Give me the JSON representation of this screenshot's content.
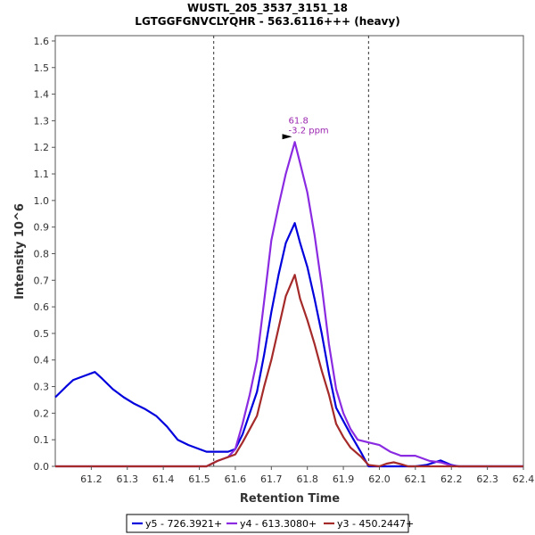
{
  "chart_data": {
    "type": "line",
    "title": "WUSTL_205_3537_3151_18",
    "subtitle": "LGTGGFGNVCLYQHR - 563.6116+++ (heavy)",
    "xlabel": "Retention Time",
    "ylabel": "Intensity 10^6",
    "xlim": [
      61.1,
      62.4
    ],
    "ylim": [
      0,
      1.62
    ],
    "x_ticks": [
      "61.2",
      "61.3",
      "61.4",
      "61.5",
      "61.6",
      "61.7",
      "61.8",
      "61.9",
      "62.0",
      "62.1",
      "62.2",
      "62.3",
      "62.4"
    ],
    "y_ticks": [
      "0.0",
      "0.1",
      "0.2",
      "0.3",
      "0.4",
      "0.5",
      "0.6",
      "0.7",
      "0.8",
      "0.9",
      "1.0",
      "1.1",
      "1.2",
      "1.3",
      "1.4",
      "1.5",
      "1.6"
    ],
    "grid": false,
    "legend_position": "bottom",
    "vlines": [
      61.54,
      61.97
    ],
    "annotation": {
      "lines": [
        "61.8",
        "-3.2 ppm"
      ],
      "x": 61.765,
      "y": 1.22,
      "color": "#9c27b0"
    },
    "series": [
      {
        "name": "y5 - 726.3921+",
        "color": "#0000dd",
        "points": [
          [
            61.1,
            0.26
          ],
          [
            61.13,
            0.3
          ],
          [
            61.15,
            0.325
          ],
          [
            61.18,
            0.34
          ],
          [
            61.21,
            0.355
          ],
          [
            61.23,
            0.33
          ],
          [
            61.26,
            0.29
          ],
          [
            61.29,
            0.26
          ],
          [
            61.32,
            0.235
          ],
          [
            61.35,
            0.215
          ],
          [
            61.38,
            0.19
          ],
          [
            61.41,
            0.15
          ],
          [
            61.44,
            0.1
          ],
          [
            61.47,
            0.08
          ],
          [
            61.5,
            0.065
          ],
          [
            61.52,
            0.055
          ],
          [
            61.55,
            0.055
          ],
          [
            61.58,
            0.055
          ],
          [
            61.6,
            0.065
          ],
          [
            61.62,
            0.12
          ],
          [
            61.64,
            0.2
          ],
          [
            61.66,
            0.28
          ],
          [
            61.68,
            0.42
          ],
          [
            61.7,
            0.58
          ],
          [
            61.72,
            0.72
          ],
          [
            61.74,
            0.84
          ],
          [
            61.765,
            0.915
          ],
          [
            61.78,
            0.84
          ],
          [
            61.8,
            0.75
          ],
          [
            61.82,
            0.63
          ],
          [
            61.84,
            0.5
          ],
          [
            61.86,
            0.35
          ],
          [
            61.88,
            0.22
          ],
          [
            61.9,
            0.17
          ],
          [
            61.92,
            0.12
          ],
          [
            61.95,
            0.05
          ],
          [
            61.97,
            0.0
          ],
          [
            62.0,
            0.0
          ],
          [
            62.05,
            0.0
          ],
          [
            62.1,
            0.0
          ],
          [
            62.13,
            0.005
          ],
          [
            62.17,
            0.022
          ],
          [
            62.2,
            0.005
          ],
          [
            62.22,
            0.0
          ],
          [
            62.4,
            0.0
          ]
        ]
      },
      {
        "name": "y4 - 613.3080+",
        "color": "#8a2be2",
        "points": [
          [
            61.1,
            0.0
          ],
          [
            61.5,
            0.0
          ],
          [
            61.52,
            0.0
          ],
          [
            61.55,
            0.02
          ],
          [
            61.58,
            0.035
          ],
          [
            61.6,
            0.065
          ],
          [
            61.62,
            0.16
          ],
          [
            61.64,
            0.27
          ],
          [
            61.66,
            0.4
          ],
          [
            61.68,
            0.62
          ],
          [
            61.7,
            0.85
          ],
          [
            61.72,
            0.98
          ],
          [
            61.74,
            1.1
          ],
          [
            61.765,
            1.22
          ],
          [
            61.78,
            1.14
          ],
          [
            61.8,
            1.03
          ],
          [
            61.82,
            0.87
          ],
          [
            61.84,
            0.68
          ],
          [
            61.86,
            0.46
          ],
          [
            61.88,
            0.29
          ],
          [
            61.9,
            0.2
          ],
          [
            61.92,
            0.14
          ],
          [
            61.94,
            0.1
          ],
          [
            61.97,
            0.09
          ],
          [
            62.0,
            0.08
          ],
          [
            62.03,
            0.055
          ],
          [
            62.06,
            0.04
          ],
          [
            62.1,
            0.04
          ],
          [
            62.14,
            0.02
          ],
          [
            62.17,
            0.015
          ],
          [
            62.2,
            0.003
          ],
          [
            62.22,
            0.0
          ],
          [
            62.4,
            0.0
          ]
        ]
      },
      {
        "name": "y3 - 450.2447+",
        "color": "#a52a2a",
        "points": [
          [
            61.1,
            0.0
          ],
          [
            61.5,
            0.0
          ],
          [
            61.52,
            0.0
          ],
          [
            61.55,
            0.02
          ],
          [
            61.58,
            0.035
          ],
          [
            61.6,
            0.045
          ],
          [
            61.62,
            0.09
          ],
          [
            61.64,
            0.14
          ],
          [
            61.66,
            0.19
          ],
          [
            61.68,
            0.3
          ],
          [
            61.7,
            0.4
          ],
          [
            61.72,
            0.52
          ],
          [
            61.74,
            0.64
          ],
          [
            61.765,
            0.72
          ],
          [
            61.78,
            0.63
          ],
          [
            61.8,
            0.55
          ],
          [
            61.82,
            0.46
          ],
          [
            61.84,
            0.36
          ],
          [
            61.86,
            0.27
          ],
          [
            61.88,
            0.16
          ],
          [
            61.9,
            0.11
          ],
          [
            61.92,
            0.07
          ],
          [
            61.95,
            0.035
          ],
          [
            61.97,
            0.005
          ],
          [
            62.0,
            0.0
          ],
          [
            62.02,
            0.01
          ],
          [
            62.04,
            0.015
          ],
          [
            62.06,
            0.008
          ],
          [
            62.08,
            0.0
          ],
          [
            62.4,
            0.0
          ]
        ]
      }
    ]
  }
}
